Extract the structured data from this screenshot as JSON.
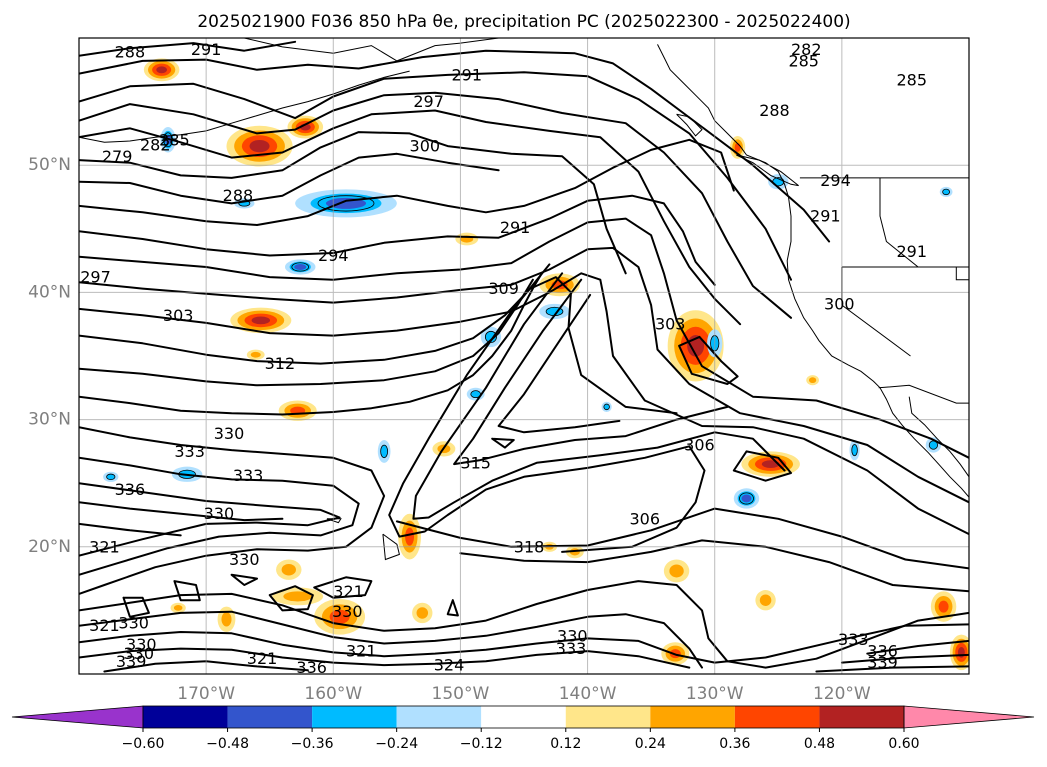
{
  "chart_data": {
    "type": "contour_map",
    "title": "2025021900 F036 850 hPa θe, precipitation PC (2025022300 - 2025022400)",
    "map": {
      "projection": "PlateCarree",
      "lon_range": [
        -180,
        -110
      ],
      "lat_range": [
        10,
        60
      ],
      "lon_ticks": [
        -170,
        -160,
        -150,
        -140,
        -130,
        -120
      ],
      "lon_tick_labels": [
        "170°W",
        "160°W",
        "150°W",
        "140°W",
        "130°W",
        "120°W"
      ],
      "lat_ticks": [
        20,
        30,
        40,
        50
      ],
      "lat_tick_labels": [
        "20°N",
        "30°N",
        "40°N",
        "50°N"
      ],
      "grid": true,
      "coastlines": true
    },
    "theta_e_contours": {
      "units": "K",
      "interval": 3,
      "labels": [
        {
          "text": "288",
          "lon": -176.0,
          "lat": 58.9
        },
        {
          "text": "291",
          "lon": -170.0,
          "lat": 59.1
        },
        {
          "text": "291",
          "lon": -149.5,
          "lat": 57.1
        },
        {
          "text": "297",
          "lon": -152.5,
          "lat": 55.0
        },
        {
          "text": "300",
          "lon": -152.8,
          "lat": 51.5
        },
        {
          "text": "282",
          "lon": -122.8,
          "lat": 59.1
        },
        {
          "text": "285",
          "lon": -123.0,
          "lat": 58.2
        },
        {
          "text": "285",
          "lon": -114.5,
          "lat": 56.7
        },
        {
          "text": "288",
          "lon": -125.3,
          "lat": 54.3
        },
        {
          "text": "294",
          "lon": -120.5,
          "lat": 48.8
        },
        {
          "text": "291",
          "lon": -121.3,
          "lat": 46.0
        },
        {
          "text": "291",
          "lon": -114.5,
          "lat": 43.2
        },
        {
          "text": "300",
          "lon": -120.2,
          "lat": 39.1
        },
        {
          "text": "303",
          "lon": -133.5,
          "lat": 37.5
        },
        {
          "text": "306",
          "lon": -131.2,
          "lat": 28.0
        },
        {
          "text": "306",
          "lon": -135.5,
          "lat": 22.2
        },
        {
          "text": "318",
          "lon": -144.6,
          "lat": 20.0
        },
        {
          "text": "279",
          "lon": -177.0,
          "lat": 50.7
        },
        {
          "text": "282",
          "lon": -174.0,
          "lat": 51.6
        },
        {
          "text": "285",
          "lon": -172.5,
          "lat": 52.0
        },
        {
          "text": "288",
          "lon": -167.5,
          "lat": 47.6
        },
        {
          "text": "294",
          "lon": -160.0,
          "lat": 42.9
        },
        {
          "text": "291",
          "lon": -145.7,
          "lat": 45.1
        },
        {
          "text": "297",
          "lon": -178.7,
          "lat": 41.2
        },
        {
          "text": "309",
          "lon": -146.6,
          "lat": 40.3
        },
        {
          "text": "303",
          "lon": -172.2,
          "lat": 38.2
        },
        {
          "text": "312",
          "lon": -164.2,
          "lat": 34.4
        },
        {
          "text": "330",
          "lon": -168.2,
          "lat": 28.9
        },
        {
          "text": "333",
          "lon": -171.3,
          "lat": 27.5
        },
        {
          "text": "333",
          "lon": -166.7,
          "lat": 25.6
        },
        {
          "text": "336",
          "lon": -176.0,
          "lat": 24.5
        },
        {
          "text": "315",
          "lon": -148.8,
          "lat": 26.6
        },
        {
          "text": "330",
          "lon": -169.0,
          "lat": 22.6
        },
        {
          "text": "321",
          "lon": -178.0,
          "lat": 20.0
        },
        {
          "text": "330",
          "lon": -167.0,
          "lat": 19.0
        },
        {
          "text": "321",
          "lon": -158.8,
          "lat": 16.5
        },
        {
          "text": "330",
          "lon": -158.9,
          "lat": 14.9
        },
        {
          "text": "330",
          "lon": -175.7,
          "lat": 14.0
        },
        {
          "text": "321",
          "lon": -178.0,
          "lat": 13.8
        },
        {
          "text": "330",
          "lon": -175.1,
          "lat": 12.3
        },
        {
          "text": "330",
          "lon": -175.3,
          "lat": 11.6
        },
        {
          "text": "339",
          "lon": -175.9,
          "lat": 11.0
        },
        {
          "text": "321",
          "lon": -165.6,
          "lat": 11.2
        },
        {
          "text": "336",
          "lon": -161.7,
          "lat": 10.5
        },
        {
          "text": "321",
          "lon": -157.8,
          "lat": 11.8
        },
        {
          "text": "324",
          "lon": -150.9,
          "lat": 10.7
        },
        {
          "text": "330",
          "lon": -141.2,
          "lat": 13.0
        },
        {
          "text": "333",
          "lon": -141.3,
          "lat": 12.0
        },
        {
          "text": "333",
          "lon": -119.1,
          "lat": 12.7
        },
        {
          "text": "336",
          "lon": -116.8,
          "lat": 11.8
        },
        {
          "text": "339",
          "lon": -116.8,
          "lat": 10.9
        }
      ]
    },
    "precip_anomaly": {
      "levels": [
        -0.6,
        -0.48,
        -0.36,
        -0.24,
        -0.12,
        0.12,
        0.24,
        0.36,
        0.48,
        0.6
      ],
      "colors": [
        "#9933cc",
        "#000099",
        "#3355cc",
        "#00bbff",
        "#b0e0ff",
        "#ffffff",
        "#ffe68a",
        "#ffa500",
        "#ff4500",
        "#b22222",
        "#ff88aa"
      ],
      "extend": "both",
      "colorbar_tick_labels": [
        "−0.60",
        "−0.48",
        "−0.36",
        "−0.24",
        "−0.12",
        "0.12",
        "0.24",
        "0.36",
        "0.48",
        "0.60"
      ],
      "positive_regions": [
        {
          "lon": -173.5,
          "lat": 57.5,
          "rx": 1.4,
          "ry": 0.9,
          "max": 0.48
        },
        {
          "lon": -165.8,
          "lat": 51.5,
          "rx": 2.6,
          "ry": 1.6,
          "max": 0.48
        },
        {
          "lon": -162.2,
          "lat": 53.0,
          "rx": 1.4,
          "ry": 0.9,
          "max": 0.48
        },
        {
          "lon": -149.5,
          "lat": 44.2,
          "rx": 0.9,
          "ry": 0.5,
          "max": 0.24
        },
        {
          "lon": -142.2,
          "lat": 40.6,
          "rx": 1.6,
          "ry": 0.9,
          "max": 0.36
        },
        {
          "lon": -165.7,
          "lat": 37.8,
          "rx": 2.4,
          "ry": 1.0,
          "max": 0.48
        },
        {
          "lon": -166.1,
          "lat": 35.1,
          "rx": 0.7,
          "ry": 0.4,
          "max": 0.24
        },
        {
          "lon": -131.5,
          "lat": 35.8,
          "rx": 2.2,
          "ry": 2.8,
          "max": 0.48
        },
        {
          "lon": -128.2,
          "lat": 51.4,
          "rx": 0.6,
          "ry": 0.9,
          "max": 0.36
        },
        {
          "lon": -125.6,
          "lat": 26.5,
          "rx": 2.3,
          "ry": 1.0,
          "max": 0.48
        },
        {
          "lon": -162.8,
          "lat": 30.7,
          "rx": 1.5,
          "ry": 0.8,
          "max": 0.36
        },
        {
          "lon": -151.3,
          "lat": 27.7,
          "rx": 0.9,
          "ry": 0.6,
          "max": 0.24
        },
        {
          "lon": -159.5,
          "lat": 14.5,
          "rx": 2.0,
          "ry": 1.4,
          "max": 0.36
        },
        {
          "lon": -154.0,
          "lat": 20.8,
          "rx": 0.9,
          "ry": 1.8,
          "max": 0.36
        },
        {
          "lon": -163.5,
          "lat": 18.2,
          "rx": 1.0,
          "ry": 0.8,
          "max": 0.24
        },
        {
          "lon": -153.0,
          "lat": 14.8,
          "rx": 0.8,
          "ry": 0.8,
          "max": 0.24
        },
        {
          "lon": -141.0,
          "lat": 19.6,
          "rx": 0.7,
          "ry": 0.5,
          "max": 0.24
        },
        {
          "lon": -133.1,
          "lat": 11.6,
          "rx": 1.1,
          "ry": 0.9,
          "max": 0.36
        },
        {
          "lon": -133.0,
          "lat": 18.1,
          "rx": 1.0,
          "ry": 0.9,
          "max": 0.24
        },
        {
          "lon": -126.0,
          "lat": 15.8,
          "rx": 0.8,
          "ry": 0.8,
          "max": 0.24
        },
        {
          "lon": -112.0,
          "lat": 15.3,
          "rx": 1.0,
          "ry": 1.2,
          "max": 0.36
        },
        {
          "lon": -110.6,
          "lat": 11.7,
          "rx": 0.9,
          "ry": 1.4,
          "max": 0.48
        },
        {
          "lon": -122.3,
          "lat": 33.1,
          "rx": 0.5,
          "ry": 0.4,
          "max": 0.24
        },
        {
          "lon": -168.4,
          "lat": 14.3,
          "rx": 0.7,
          "ry": 1.0,
          "max": 0.24
        },
        {
          "lon": -172.2,
          "lat": 15.2,
          "rx": 0.6,
          "ry": 0.4,
          "max": 0.24
        },
        {
          "lon": -162.8,
          "lat": 16.1,
          "rx": 2.0,
          "ry": 0.7,
          "max": 0.24
        },
        {
          "lon": -143.0,
          "lat": 20.0,
          "rx": 0.6,
          "ry": 0.4,
          "max": 0.24
        }
      ],
      "negative_regions": [
        {
          "lon": -159.0,
          "lat": 47.0,
          "rx": 4.0,
          "ry": 1.1,
          "max": 0.36
        },
        {
          "lon": -173.0,
          "lat": 52.0,
          "rx": 0.6,
          "ry": 1.0,
          "max": 0.36
        },
        {
          "lon": -167.0,
          "lat": 47.0,
          "rx": 0.8,
          "ry": 0.4,
          "max": 0.24
        },
        {
          "lon": -162.6,
          "lat": 42.0,
          "rx": 1.2,
          "ry": 0.6,
          "max": 0.36
        },
        {
          "lon": -147.6,
          "lat": 36.5,
          "rx": 0.8,
          "ry": 0.8,
          "max": 0.24
        },
        {
          "lon": -142.6,
          "lat": 38.5,
          "rx": 1.2,
          "ry": 0.6,
          "max": 0.24
        },
        {
          "lon": -130.0,
          "lat": 36.0,
          "rx": 0.6,
          "ry": 1.1,
          "max": 0.24
        },
        {
          "lon": -127.5,
          "lat": 23.8,
          "rx": 1.0,
          "ry": 0.8,
          "max": 0.36
        },
        {
          "lon": -148.8,
          "lat": 32.0,
          "rx": 0.7,
          "ry": 0.5,
          "max": 0.24
        },
        {
          "lon": -171.5,
          "lat": 25.7,
          "rx": 1.2,
          "ry": 0.6,
          "max": 0.24
        },
        {
          "lon": -125.0,
          "lat": 48.7,
          "rx": 0.8,
          "ry": 0.6,
          "max": 0.24
        },
        {
          "lon": -111.8,
          "lat": 47.9,
          "rx": 0.5,
          "ry": 0.4,
          "max": 0.24
        },
        {
          "lon": -112.8,
          "lat": 28.0,
          "rx": 0.6,
          "ry": 0.6,
          "max": 0.24
        },
        {
          "lon": -119.0,
          "lat": 27.6,
          "rx": 0.4,
          "ry": 0.8,
          "max": 0.24
        },
        {
          "lon": -156.0,
          "lat": 27.5,
          "rx": 0.5,
          "ry": 0.9,
          "max": 0.24
        },
        {
          "lon": -138.5,
          "lat": 31.0,
          "rx": 0.4,
          "ry": 0.4,
          "max": 0.24
        },
        {
          "lon": -177.5,
          "lat": 25.5,
          "rx": 0.6,
          "ry": 0.4,
          "max": 0.24
        }
      ]
    }
  }
}
